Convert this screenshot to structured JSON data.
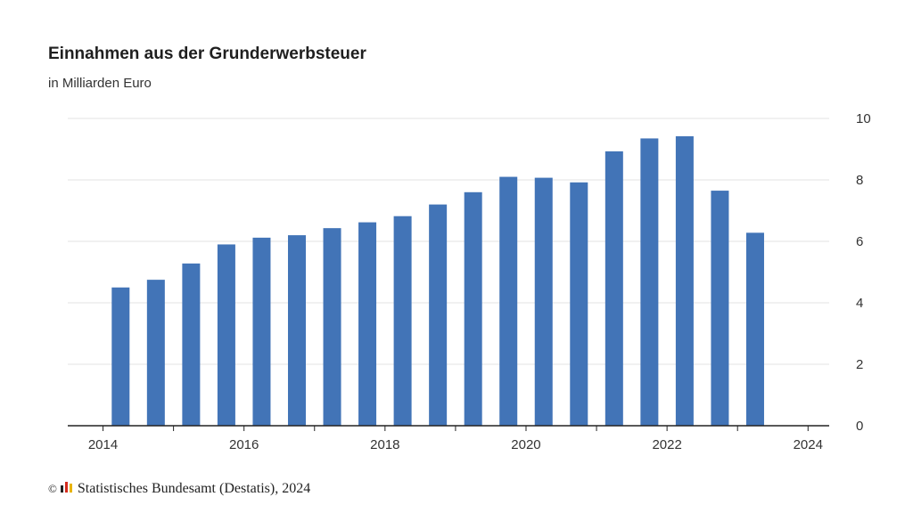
{
  "chart_data": {
    "type": "bar",
    "title": "Einnahmen aus der Grunderwerbsteuer",
    "subtitle": "in Milliarden Euro",
    "x": [
      2014.25,
      2014.75,
      2015.25,
      2015.75,
      2016.25,
      2016.75,
      2017.25,
      2017.75,
      2018.25,
      2018.75,
      2019.25,
      2019.75,
      2020.25,
      2020.75,
      2021.25,
      2021.75,
      2022.25,
      2022.75,
      2023.25
    ],
    "values": [
      4.5,
      4.75,
      5.28,
      5.9,
      6.12,
      6.2,
      6.43,
      6.62,
      6.82,
      7.2,
      7.6,
      8.1,
      8.07,
      7.92,
      8.93,
      9.35,
      9.42,
      7.65,
      6.28
    ],
    "xlim": [
      2013.5,
      2024.3
    ],
    "ylim": [
      0,
      10
    ],
    "yticks": [
      "0",
      "2",
      "4",
      "6",
      "8",
      "10"
    ],
    "xticks": [
      "2014",
      "2016",
      "2018",
      "2020",
      "2022",
      "2024"
    ],
    "xlabel": "",
    "ylabel": "",
    "grid": true,
    "y_axis_side": "right",
    "bar_color": "#4274b7"
  },
  "source": {
    "copyright": "©",
    "text": "Statistisches Bundesamt (Destatis), 2024"
  }
}
